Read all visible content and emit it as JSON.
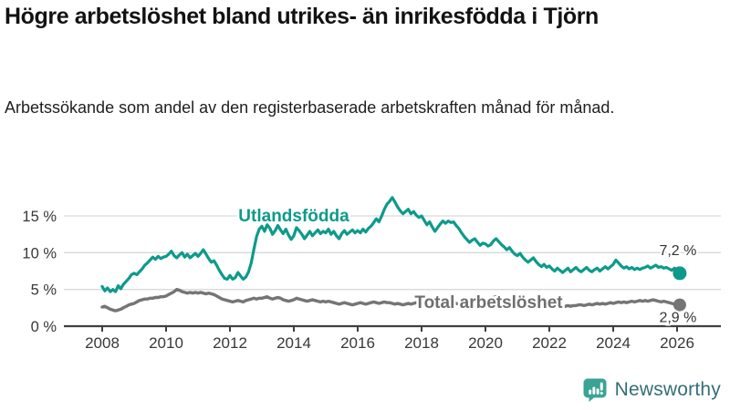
{
  "header": {
    "title": "Högre arbetslöshet bland utrikes- än inrikesfödda i Tjörn",
    "subtitle": "Arbetssökande som andel av den registerbaserade arbetskraften månad för månad."
  },
  "chart_data": {
    "type": "line",
    "title": "Högre arbetslöshet bland utrikes- än inrikesfödda i Tjörn",
    "x_start_year": 2008,
    "x_step_months": 1,
    "x_ticks": [
      "2008",
      "2010",
      "2012",
      "2014",
      "2016",
      "2018",
      "2020",
      "2022",
      "2024",
      "2026"
    ],
    "y_ticks": [
      0,
      5,
      10,
      15
    ],
    "y_tick_labels": [
      "0 %",
      "5 %",
      "10 %",
      "15 %"
    ],
    "ylim": [
      0,
      18.5
    ],
    "xlim": [
      2006.8,
      2027.4
    ],
    "grid": "horizontal",
    "legend_position": "inline-labels",
    "colors": {
      "accent_teal": "#0d9a8b",
      "line_gray": "#757575",
      "label_gray": "#6f6f6f",
      "axis": "#3f3f3f",
      "gridline": "#d9d9d9",
      "tick_label": "#383838",
      "annotation": "#333333"
    },
    "series": [
      {
        "name": "Total arbetslöshet",
        "color": "#757575",
        "label_color": "#6f6f6f",
        "end_label": "2,9 %",
        "end_value": 2.9,
        "label_at": {
          "year": 2020.1,
          "pct": 3.2
        },
        "values": [
          2.6,
          2.7,
          2.5,
          2.3,
          2.2,
          2.1,
          2.2,
          2.3,
          2.5,
          2.7,
          2.9,
          3.0,
          3.1,
          3.3,
          3.5,
          3.6,
          3.7,
          3.7,
          3.8,
          3.8,
          3.9,
          3.9,
          4.0,
          4.0,
          4.1,
          4.3,
          4.5,
          4.7,
          5.0,
          4.9,
          4.7,
          4.6,
          4.5,
          4.6,
          4.5,
          4.6,
          4.5,
          4.6,
          4.5,
          4.4,
          4.5,
          4.4,
          4.3,
          4.1,
          3.9,
          3.7,
          3.6,
          3.5,
          3.4,
          3.3,
          3.4,
          3.5,
          3.4,
          3.3,
          3.5,
          3.6,
          3.7,
          3.8,
          3.7,
          3.8,
          3.8,
          3.9,
          4.0,
          3.8,
          3.7,
          3.8,
          3.9,
          3.8,
          3.6,
          3.5,
          3.4,
          3.5,
          3.6,
          3.8,
          3.7,
          3.6,
          3.5,
          3.4,
          3.5,
          3.6,
          3.5,
          3.4,
          3.3,
          3.4,
          3.3,
          3.4,
          3.3,
          3.2,
          3.1,
          3.0,
          3.1,
          3.2,
          3.1,
          3.0,
          2.9,
          3.0,
          3.1,
          3.2,
          3.1,
          3.0,
          3.1,
          3.2,
          3.3,
          3.2,
          3.1,
          3.2,
          3.3,
          3.2,
          3.2,
          3.1,
          3.0,
          3.1,
          3.0,
          2.9,
          3.0,
          3.1,
          3.0,
          3.1,
          3.2,
          3.1,
          3.1,
          3.0,
          2.9,
          3.0,
          2.9,
          2.8,
          2.9,
          3.0,
          3.1,
          3.0,
          3.1,
          3.2,
          3.2,
          3.1,
          3.0,
          3.1,
          3.2,
          3.1,
          3.2,
          3.3,
          3.2,
          3.3,
          3.4,
          3.5,
          3.5,
          3.4,
          3.6,
          3.9,
          4.0,
          3.9,
          3.8,
          3.7,
          3.6,
          3.5,
          3.4,
          3.5,
          3.4,
          3.3,
          3.2,
          3.1,
          3.0,
          2.9,
          2.9,
          2.8,
          2.8,
          2.7,
          2.7,
          2.8,
          2.8,
          2.7,
          2.7,
          2.6,
          2.6,
          2.7,
          2.7,
          2.8,
          2.7,
          2.8,
          2.8,
          2.9,
          2.9,
          2.8,
          2.9,
          3.0,
          2.9,
          3.0,
          3.1,
          3.0,
          3.1,
          3.0,
          3.1,
          3.2,
          3.1,
          3.2,
          3.3,
          3.2,
          3.3,
          3.2,
          3.3,
          3.4,
          3.3,
          3.4,
          3.5,
          3.4,
          3.5,
          3.4,
          3.5,
          3.6,
          3.5,
          3.4,
          3.3,
          3.4,
          3.3,
          3.2,
          3.1,
          3.0,
          3.0,
          2.9
        ]
      },
      {
        "name": "Utlandsfödda",
        "color": "#0d9a8b",
        "label_color": "#0d9a8b",
        "end_label": "7,2 %",
        "end_value": 7.2,
        "label_at": {
          "year": 2014.0,
          "pct": 15.0
        },
        "values": [
          5.4,
          4.8,
          5.2,
          4.7,
          5.0,
          4.7,
          5.5,
          5.1,
          5.7,
          6.1,
          6.5,
          7.0,
          7.2,
          7.0,
          7.4,
          7.8,
          8.3,
          8.6,
          9.0,
          9.4,
          9.1,
          9.5,
          9.2,
          9.4,
          9.5,
          9.8,
          10.2,
          9.6,
          9.3,
          9.7,
          10.0,
          9.4,
          9.8,
          9.3,
          9.6,
          9.9,
          9.5,
          9.9,
          10.4,
          9.8,
          9.2,
          8.7,
          8.9,
          8.3,
          7.6,
          7.0,
          6.5,
          6.4,
          6.9,
          6.4,
          6.6,
          7.3,
          6.8,
          6.4,
          6.7,
          7.4,
          8.6,
          10.5,
          12.2,
          13.2,
          13.6,
          12.9,
          13.8,
          13.3,
          12.5,
          13.0,
          13.7,
          13.1,
          12.6,
          13.2,
          12.4,
          11.8,
          12.3,
          13.4,
          13.0,
          12.5,
          11.9,
          12.4,
          12.9,
          12.3,
          12.7,
          13.1,
          12.6,
          12.9,
          12.7,
          13.2,
          12.5,
          12.9,
          12.3,
          11.9,
          12.6,
          13.0,
          12.5,
          12.8,
          13.1,
          12.7,
          13.0,
          12.7,
          13.2,
          12.8,
          13.3,
          13.6,
          14.1,
          14.6,
          14.2,
          15.0,
          15.9,
          16.6,
          17.0,
          17.5,
          16.9,
          16.2,
          15.7,
          15.3,
          15.6,
          15.9,
          15.3,
          15.6,
          15.1,
          14.8,
          15.0,
          14.4,
          13.8,
          14.2,
          13.5,
          12.9,
          13.4,
          13.9,
          14.3,
          14.0,
          14.3,
          14.1,
          14.2,
          13.7,
          13.3,
          12.7,
          12.2,
          11.8,
          11.4,
          11.7,
          11.9,
          11.4,
          11.0,
          11.3,
          11.2,
          10.9,
          11.1,
          11.6,
          11.9,
          11.5,
          11.1,
          10.8,
          10.4,
          10.7,
          10.2,
          9.8,
          9.6,
          9.9,
          9.4,
          9.0,
          8.7,
          9.0,
          9.3,
          8.8,
          8.4,
          8.1,
          8.4,
          8.0,
          8.2,
          7.8,
          7.5,
          7.9,
          7.6,
          7.3,
          7.6,
          7.9,
          7.4,
          7.7,
          8.0,
          7.6,
          7.4,
          7.7,
          8.0,
          7.6,
          7.4,
          7.7,
          7.9,
          7.5,
          7.8,
          8.1,
          7.8,
          8.1,
          8.4,
          9.0,
          8.6,
          8.2,
          7.9,
          8.1,
          7.8,
          8.0,
          7.7,
          7.9,
          7.7,
          7.9,
          8.0,
          8.2,
          7.9,
          8.1,
          8.3,
          8.0,
          8.1,
          7.9,
          8.0,
          7.8,
          7.6,
          7.9,
          7.7,
          7.2
        ]
      }
    ]
  },
  "footer": {
    "brand": "Newsworthy",
    "brand_color": "#336f76",
    "logo_bubble_color": "#3aa396",
    "logo_icon": "newsworthy-speech-bubble-bar-chart-icon"
  }
}
